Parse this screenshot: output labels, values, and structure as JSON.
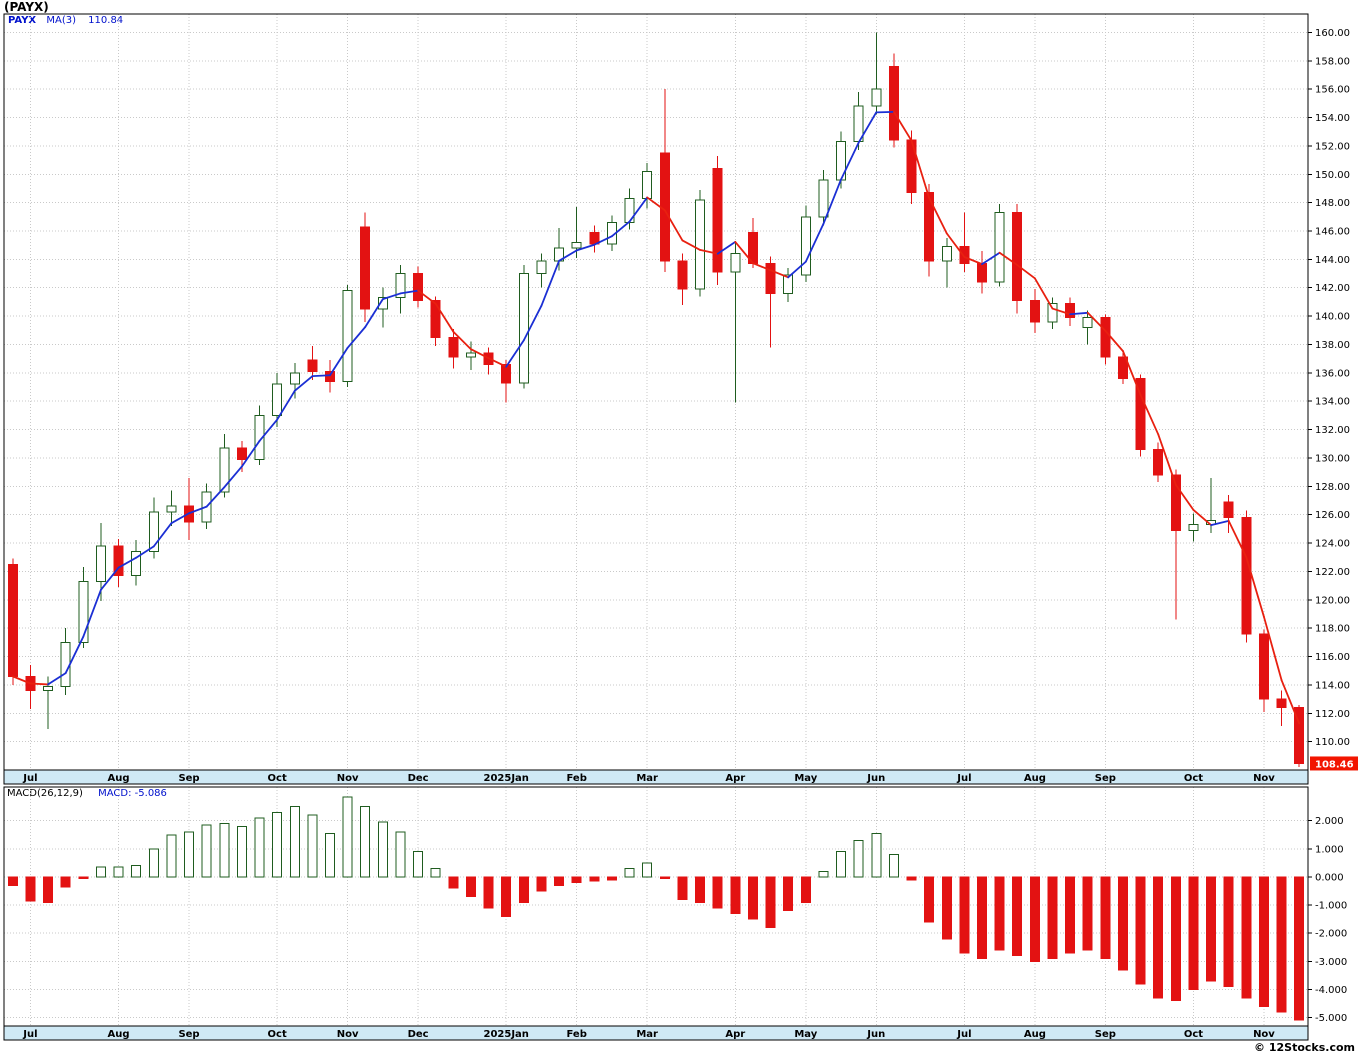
{
  "title": "(PAYX)",
  "legend": {
    "symbol": "PAYX",
    "ma_label": "MA(3)",
    "ma_value": "110.84"
  },
  "macd_header": {
    "label": "MACD(26,12,9)",
    "value": "MACD: -5.086"
  },
  "price_tag": "108.46",
  "copyright": "© 12Stocks.com",
  "colors": {
    "candle_up": "#1f5c1f",
    "candle_down": "#e31212",
    "ma_up": "#1b2fd4",
    "ma_down": "#e82010",
    "grid": "#c9c9c9",
    "axis_strip": "#cfe9f5",
    "price_tag_bg": "#f21500",
    "legend_text": "#0011cc"
  },
  "chart_data": {
    "type": "candlestick",
    "symbol": "PAYX",
    "interval": "weekly",
    "title": "(PAYX)",
    "overlay": {
      "name": "MA(3)",
      "period": 3,
      "last_value": 110.84
    },
    "indicator": {
      "name": "MACD(26,12,9)",
      "last_value": -5.086
    },
    "price_axis_ticks": [
      "160.00",
      "158.00",
      "156.00",
      "154.00",
      "152.00",
      "150.00",
      "148.00",
      "146.00",
      "144.00",
      "142.00",
      "140.00",
      "138.00",
      "136.00",
      "134.00",
      "132.00",
      "130.00",
      "128.00",
      "126.00",
      "124.00",
      "122.00",
      "120.00",
      "118.00",
      "116.00",
      "114.00",
      "112.00",
      "110.00"
    ],
    "macd_axis_ticks": [
      "2.000",
      "1.000",
      "0.000",
      "-1.000",
      "-2.000",
      "-3.000",
      "-4.000",
      "-5.000"
    ],
    "price_range": [
      108.0,
      161.3
    ],
    "macd_range": [
      -5.3,
      3.2
    ],
    "x_labels": [
      {
        "i": 1,
        "label": "Jul"
      },
      {
        "i": 6,
        "label": "Aug"
      },
      {
        "i": 10,
        "label": "Sep"
      },
      {
        "i": 15,
        "label": "Oct"
      },
      {
        "i": 19,
        "label": "Nov"
      },
      {
        "i": 23,
        "label": "Dec"
      },
      {
        "i": 28,
        "label": "2025Jan"
      },
      {
        "i": 32,
        "label": "Feb"
      },
      {
        "i": 36,
        "label": "Mar"
      },
      {
        "i": 41,
        "label": "Apr"
      },
      {
        "i": 45,
        "label": "May"
      },
      {
        "i": 49,
        "label": "Jun"
      },
      {
        "i": 54,
        "label": "Jul"
      },
      {
        "i": 58,
        "label": "Aug"
      },
      {
        "i": 62,
        "label": "Sep"
      },
      {
        "i": 67,
        "label": "Oct"
      },
      {
        "i": 71,
        "label": "Nov"
      }
    ],
    "candle_format": [
      "open",
      "high",
      "low",
      "close",
      "macd_histogram"
    ],
    "candles": [
      [
        122.5,
        122.9,
        114.0,
        114.6,
        -0.3
      ],
      [
        114.6,
        115.4,
        112.3,
        113.6,
        -0.85
      ],
      [
        113.6,
        114.6,
        110.9,
        113.9,
        -0.9
      ],
      [
        113.9,
        118.0,
        113.3,
        117.0,
        -0.35
      ],
      [
        117.0,
        122.3,
        116.6,
        121.3,
        -0.05
      ],
      [
        121.3,
        125.4,
        119.9,
        123.8,
        0.35
      ],
      [
        123.8,
        124.3,
        120.9,
        121.7,
        0.35
      ],
      [
        121.7,
        124.2,
        121.0,
        123.4,
        0.4
      ],
      [
        123.4,
        127.2,
        122.9,
        126.2,
        1.0
      ],
      [
        126.2,
        127.7,
        125.2,
        126.6,
        1.5
      ],
      [
        126.6,
        128.6,
        124.2,
        125.5,
        1.6
      ],
      [
        125.5,
        128.2,
        125.0,
        127.6,
        1.85
      ],
      [
        127.6,
        131.7,
        127.2,
        130.7,
        1.9
      ],
      [
        130.7,
        131.2,
        129.0,
        129.9,
        1.8
      ],
      [
        129.9,
        133.7,
        129.5,
        133.0,
        2.1
      ],
      [
        133.0,
        136.0,
        132.2,
        135.2,
        2.3
      ],
      [
        135.2,
        136.7,
        134.2,
        136.0,
        2.5
      ],
      [
        136.9,
        137.9,
        135.5,
        136.1,
        2.2
      ],
      [
        136.1,
        136.9,
        134.6,
        135.4,
        1.55
      ],
      [
        135.4,
        142.2,
        135.0,
        141.8,
        2.85
      ],
      [
        146.3,
        147.3,
        139.6,
        140.5,
        2.5
      ],
      [
        140.5,
        142.0,
        139.2,
        141.3,
        1.95
      ],
      [
        141.3,
        143.6,
        140.2,
        143.0,
        1.6
      ],
      [
        143.0,
        143.5,
        140.6,
        141.1,
        0.9
      ],
      [
        141.1,
        141.4,
        137.9,
        138.5,
        0.3
      ],
      [
        138.5,
        139.1,
        136.3,
        137.1,
        -0.4
      ],
      [
        137.1,
        138.2,
        136.2,
        137.4,
        -0.7
      ],
      [
        137.4,
        137.8,
        135.9,
        136.6,
        -1.1
      ],
      [
        136.6,
        136.9,
        133.9,
        135.3,
        -1.4
      ],
      [
        135.3,
        143.6,
        134.9,
        143.0,
        -0.9
      ],
      [
        143.0,
        144.4,
        142.0,
        143.9,
        -0.5
      ],
      [
        143.9,
        146.2,
        143.2,
        144.8,
        -0.3
      ],
      [
        144.8,
        147.7,
        144.1,
        145.2,
        -0.2
      ],
      [
        145.9,
        146.4,
        144.5,
        145.1,
        -0.15
      ],
      [
        145.1,
        147.1,
        144.6,
        146.6,
        -0.1
      ],
      [
        146.6,
        149.0,
        146.1,
        148.3,
        0.3
      ],
      [
        148.3,
        150.8,
        147.6,
        150.2,
        0.5
      ],
      [
        151.5,
        156.0,
        143.1,
        143.9,
        -0.05
      ],
      [
        143.9,
        144.4,
        140.8,
        141.9,
        -0.8
      ],
      [
        141.9,
        148.9,
        141.4,
        148.2,
        -0.9
      ],
      [
        150.4,
        151.3,
        142.2,
        143.1,
        -1.1
      ],
      [
        143.1,
        145.3,
        133.9,
        144.4,
        -1.3
      ],
      [
        145.9,
        146.9,
        143.4,
        143.7,
        -1.5
      ],
      [
        143.7,
        144.2,
        137.8,
        141.6,
        -1.8
      ],
      [
        141.6,
        143.4,
        141.0,
        142.9,
        -1.2
      ],
      [
        142.9,
        147.8,
        142.4,
        147.0,
        -0.9
      ],
      [
        147.0,
        150.3,
        146.4,
        149.6,
        0.2
      ],
      [
        149.6,
        153.0,
        149.0,
        152.3,
        0.9
      ],
      [
        152.3,
        155.8,
        151.7,
        154.8,
        1.3
      ],
      [
        154.8,
        160.0,
        154.2,
        156.0,
        1.55
      ],
      [
        157.6,
        158.5,
        151.9,
        152.4,
        0.8
      ],
      [
        152.4,
        153.1,
        147.9,
        148.7,
        -0.1
      ],
      [
        148.7,
        149.3,
        142.8,
        143.9,
        -1.6
      ],
      [
        143.9,
        145.5,
        142.0,
        144.9,
        -2.2
      ],
      [
        144.9,
        147.3,
        143.1,
        143.7,
        -2.7
      ],
      [
        143.7,
        144.6,
        141.6,
        142.4,
        -2.9
      ],
      [
        142.4,
        147.9,
        142.1,
        147.3,
        -2.6
      ],
      [
        147.3,
        147.9,
        140.2,
        141.1,
        -2.8
      ],
      [
        141.1,
        141.9,
        138.8,
        139.6,
        -3.0
      ],
      [
        139.6,
        141.3,
        139.1,
        140.9,
        -2.9
      ],
      [
        140.9,
        141.3,
        139.3,
        139.9,
        -2.7
      ],
      [
        139.2,
        140.4,
        138.0,
        139.9,
        -2.6
      ],
      [
        139.9,
        140.1,
        136.6,
        137.1,
        -2.9
      ],
      [
        137.1,
        137.4,
        135.2,
        135.6,
        -3.3
      ],
      [
        135.6,
        135.9,
        130.1,
        130.6,
        -3.8
      ],
      [
        130.6,
        131.1,
        128.3,
        128.8,
        -4.3
      ],
      [
        128.8,
        129.2,
        118.6,
        124.9,
        -4.4
      ],
      [
        124.9,
        126.1,
        124.1,
        125.3,
        -4.0
      ],
      [
        125.3,
        128.6,
        124.7,
        125.6,
        -3.7
      ],
      [
        126.9,
        127.4,
        124.7,
        125.8,
        -3.9
      ],
      [
        125.8,
        126.3,
        117.0,
        117.6,
        -4.3
      ],
      [
        117.6,
        117.9,
        112.1,
        113.0,
        -4.6
      ],
      [
        113.0,
        113.6,
        111.1,
        112.4,
        -4.8
      ],
      [
        112.4,
        112.6,
        108.2,
        108.46,
        -5.086
      ]
    ]
  }
}
